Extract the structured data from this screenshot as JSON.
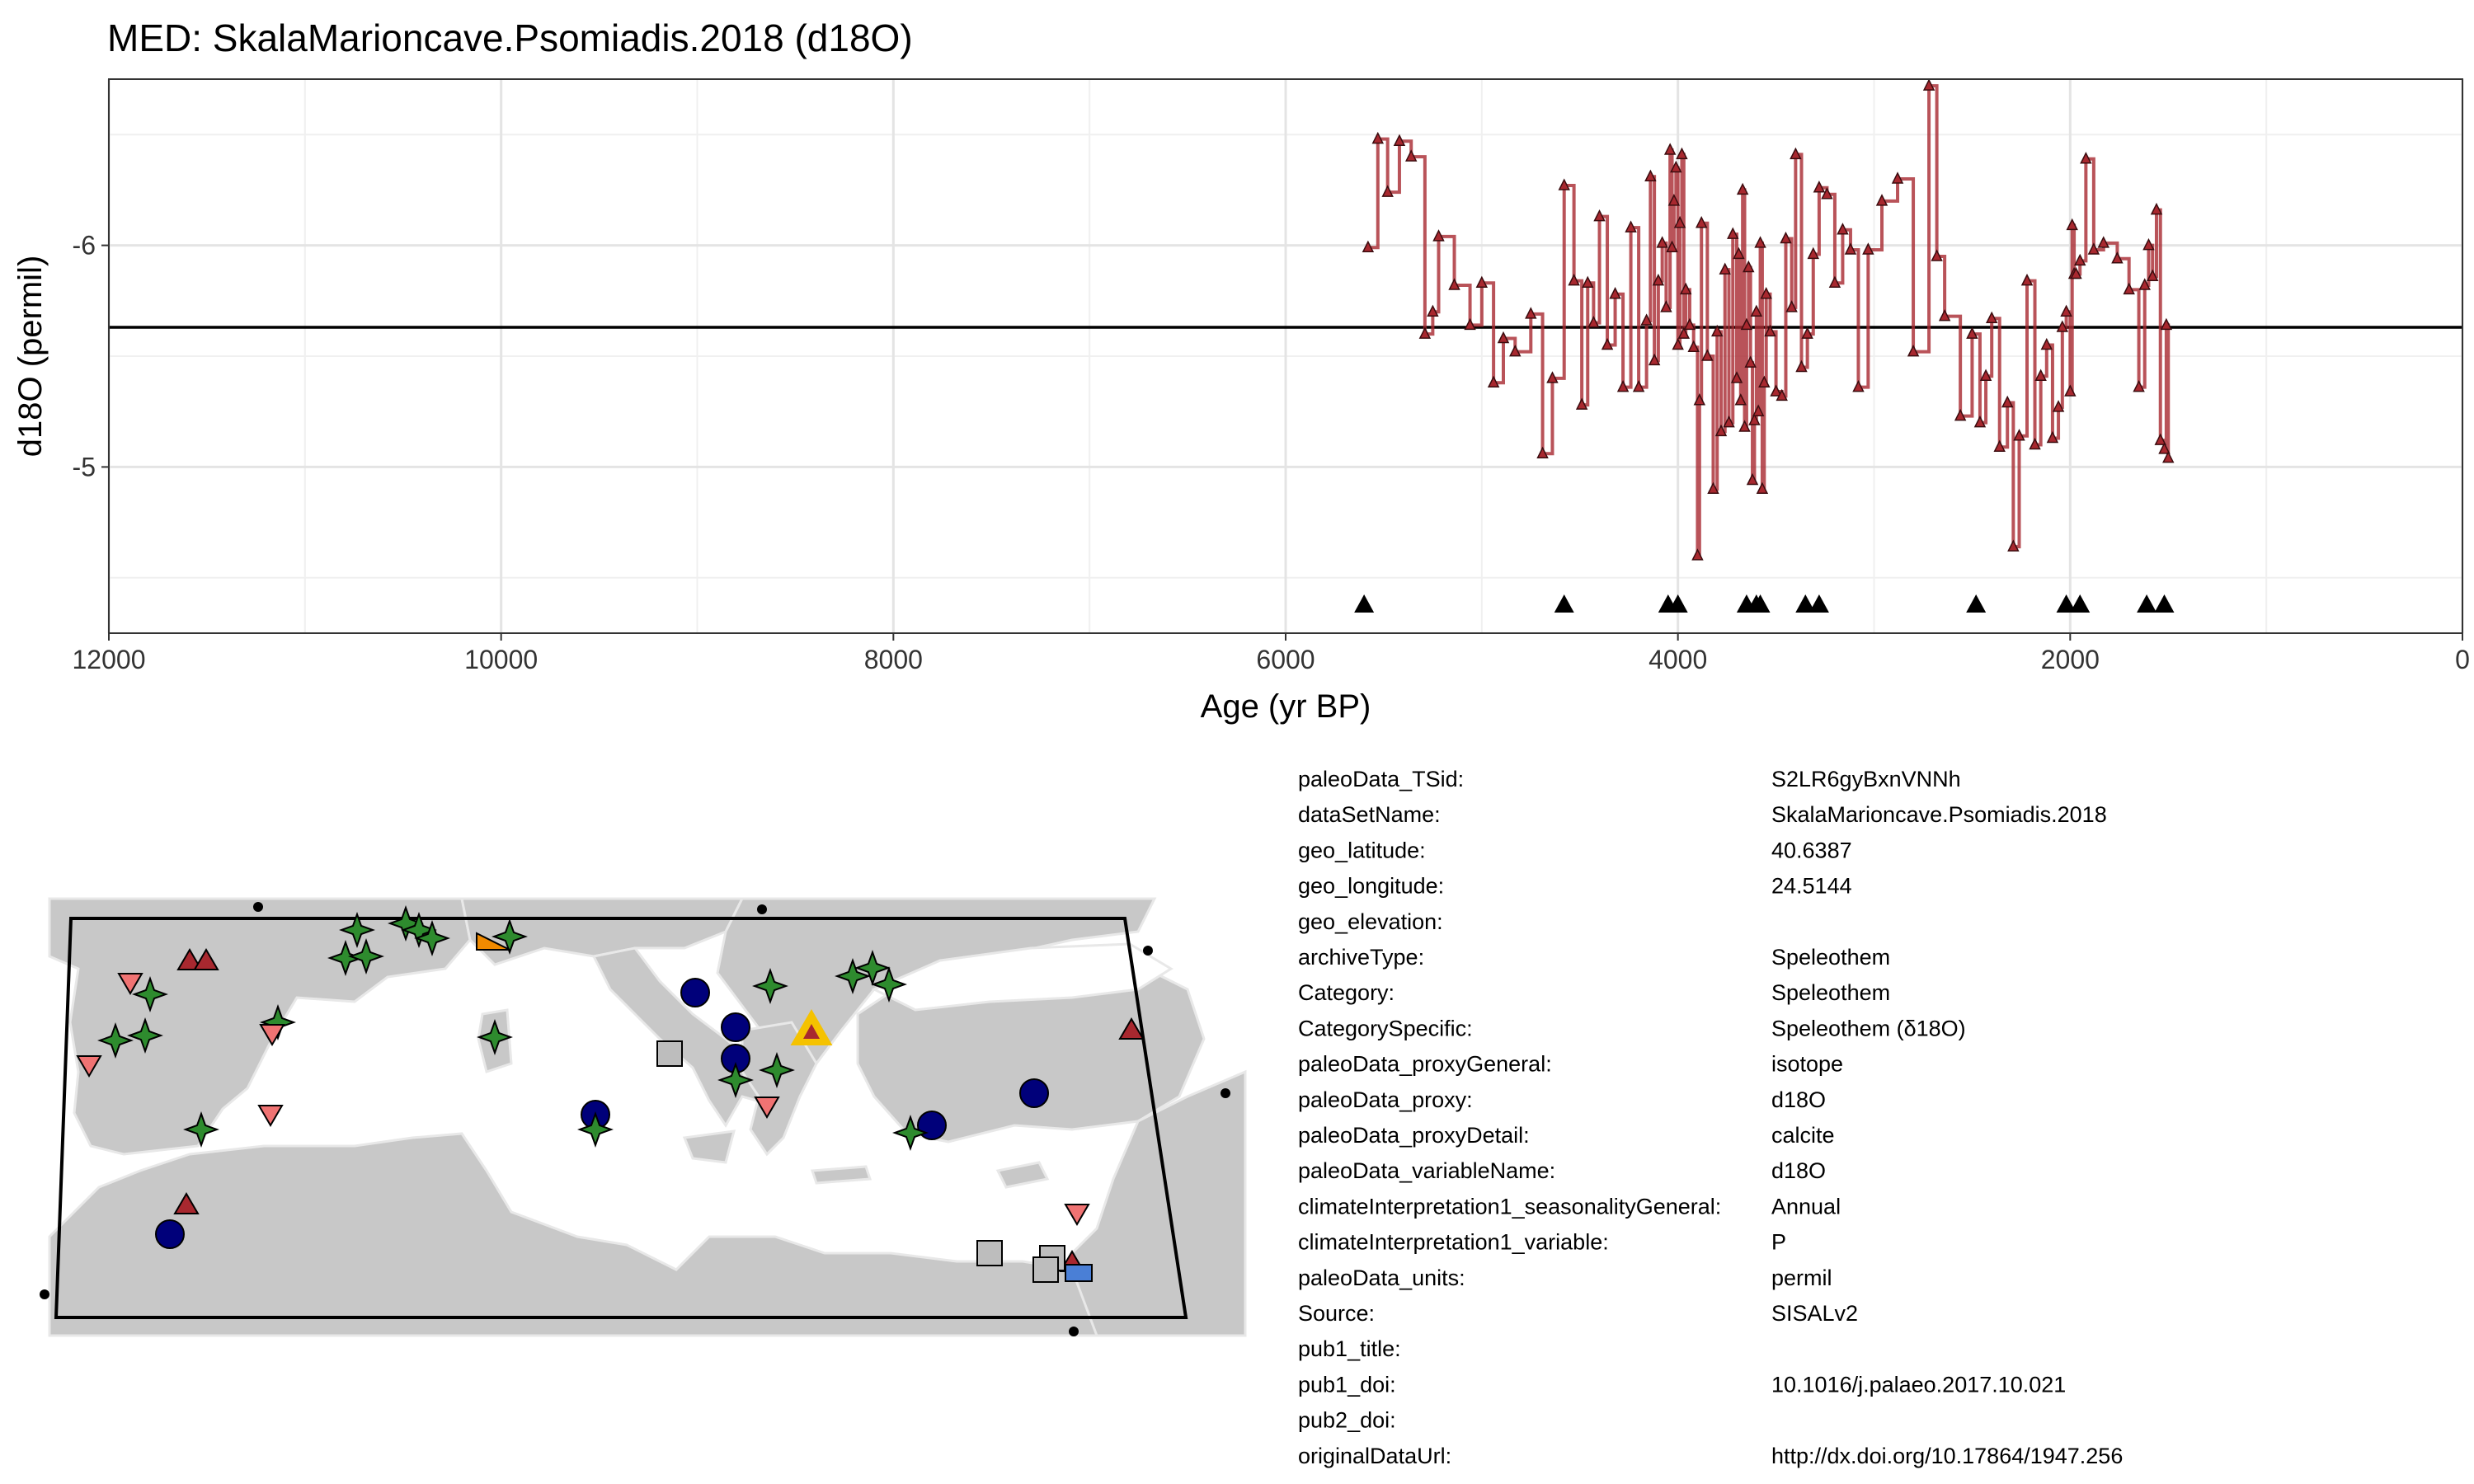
{
  "chart_data": {
    "type": "line",
    "title": "MED: SkalaMarioncave.Psomiadis.2018 (d18O)",
    "xlabel": "Age (yr BP)",
    "ylabel": "d18O (permil)",
    "xlim": [
      12000,
      0
    ],
    "ylim": [
      -4.25,
      -6.75
    ],
    "x_reversed": true,
    "y_reversed": true,
    "x_ticks": [
      12000,
      10000,
      8000,
      6000,
      4000,
      2000,
      0
    ],
    "x_tick_labels": [
      "12000",
      "10000",
      "8000",
      "6000",
      "4000",
      "2000",
      "0"
    ],
    "y_ticks": [
      -6,
      -5
    ],
    "y_tick_labels": [
      "-6",
      "-5"
    ],
    "grid": true,
    "reference_line_y": -5.63,
    "series_color": "#a8282f",
    "series": [
      {
        "x": [
          5580,
          5530,
          5480,
          5420,
          5360,
          5290,
          5250,
          5220,
          5140,
          5060,
          5000,
          4940,
          4890,
          4830,
          4750,
          4690,
          4640,
          4580,
          4530,
          4490,
          4460,
          4430,
          4400,
          4360,
          4320,
          4280,
          4240,
          4200,
          4160,
          4140,
          4120,
          4100,
          4080,
          4060,
          4040,
          4030,
          4020,
          4010,
          4000,
          3990,
          3980,
          3970,
          3960,
          3940,
          3920,
          3900,
          3890,
          3880,
          3850,
          3820,
          3800,
          3780,
          3760,
          3740,
          3720,
          3700,
          3690,
          3680,
          3670,
          3660,
          3650,
          3640,
          3630,
          3620,
          3610,
          3600,
          3590,
          3580,
          3570,
          3560,
          3550,
          3530,
          3500,
          3470,
          3450,
          3420,
          3400,
          3370,
          3340,
          3310,
          3280,
          3240,
          3200,
          3160,
          3120,
          3080,
          3030,
          2960,
          2880,
          2800,
          2720,
          2680,
          2640,
          2560,
          2500,
          2460,
          2430,
          2400,
          2360,
          2320,
          2290,
          2260,
          2220,
          2180,
          2150,
          2120,
          2090,
          2060,
          2040,
          2020,
          2000,
          1990,
          1980,
          1970,
          1950,
          1920,
          1880,
          1830,
          1760,
          1700,
          1650,
          1620,
          1600,
          1580,
          1560,
          1540,
          1520,
          1510,
          1500
        ],
        "y": [
          -5.99,
          -6.48,
          -6.24,
          -6.47,
          -6.4,
          -5.6,
          -5.7,
          -6.04,
          -5.82,
          -5.64,
          -5.83,
          -5.38,
          -5.58,
          -5.52,
          -5.69,
          -5.06,
          -5.4,
          -6.27,
          -5.84,
          -5.28,
          -5.83,
          -5.65,
          -6.13,
          -5.55,
          -5.78,
          -5.36,
          -6.08,
          -5.36,
          -5.66,
          -6.31,
          -5.48,
          -5.84,
          -6.01,
          -5.72,
          -6.43,
          -5.99,
          -6.2,
          -6.35,
          -5.55,
          -6.1,
          -6.41,
          -5.6,
          -5.8,
          -5.64,
          -5.54,
          -4.6,
          -5.3,
          -6.1,
          -5.5,
          -4.9,
          -5.61,
          -5.16,
          -5.89,
          -5.2,
          -6.05,
          -5.4,
          -5.96,
          -5.3,
          -6.25,
          -5.18,
          -5.64,
          -5.9,
          -5.47,
          -4.94,
          -5.21,
          -5.7,
          -5.25,
          -6.01,
          -4.9,
          -5.38,
          -5.78,
          -5.61,
          -5.34,
          -5.32,
          -6.03,
          -5.72,
          -6.41,
          -5.45,
          -5.6,
          -5.96,
          -6.26,
          -6.23,
          -5.83,
          -6.07,
          -5.98,
          -5.36,
          -5.98,
          -6.2,
          -6.3,
          -5.52,
          -6.72,
          -5.95,
          -5.68,
          -5.23,
          -5.6,
          -5.2,
          -5.41,
          -5.67,
          -5.09,
          -5.29,
          -4.64,
          -5.14,
          -5.84,
          -5.1,
          -5.41,
          -5.55,
          -5.13,
          -5.27,
          -5.63,
          -5.7,
          -5.34,
          -6.09,
          -5.87,
          -5.87,
          -5.93,
          -6.39,
          -5.98,
          -6.01,
          -5.94,
          -5.8,
          -5.36,
          -5.82,
          -6.0,
          -5.86,
          -6.16,
          -5.12,
          -5.08,
          -5.64,
          -5.04
        ]
      }
    ],
    "chron_markers_x": [
      5600,
      4580,
      4050,
      4000,
      3650,
      3600,
      3580,
      3350,
      3280,
      2480,
      2020,
      1950,
      1610,
      1520
    ],
    "chron_marker_y": -4.38
  },
  "map": {
    "site_marker": {
      "color": "#f5c200",
      "inner_color": "#a8282f"
    },
    "land_color": "#c8c8c8",
    "border_color": "#e6e6e6",
    "frame_color": "#000000"
  },
  "metadata": {
    "rows": [
      {
        "key": "paleoData_TSid:",
        "value": "S2LR6gyBxnVNNh"
      },
      {
        "key": "dataSetName:",
        "value": "SkalaMarioncave.Psomiadis.2018"
      },
      {
        "key": "geo_latitude:",
        "value": "40.6387"
      },
      {
        "key": "geo_longitude:",
        "value": "24.5144"
      },
      {
        "key": "geo_elevation:",
        "value": ""
      },
      {
        "key": "archiveType:",
        "value": "Speleothem"
      },
      {
        "key": "Category:",
        "value": "Speleothem"
      },
      {
        "key": "CategorySpecific:",
        "value": "Speleothem (δ18O)"
      },
      {
        "key": "paleoData_proxyGeneral:",
        "value": "isotope"
      },
      {
        "key": "paleoData_proxy:",
        "value": "d18O"
      },
      {
        "key": "paleoData_proxyDetail:",
        "value": "calcite"
      },
      {
        "key": "paleoData_variableName:",
        "value": "d18O"
      },
      {
        "key": "climateInterpretation1_seasonalityGeneral:",
        "value": "Annual"
      },
      {
        "key": "climateInterpretation1_variable:",
        "value": "P"
      },
      {
        "key": "paleoData_units:",
        "value": "permil"
      },
      {
        "key": "Source:",
        "value": "SISALv2"
      },
      {
        "key": "pub1_title:",
        "value": ""
      },
      {
        "key": "pub1_doi:",
        "value": "10.1016/j.palaeo.2017.10.021"
      },
      {
        "key": "pub2_doi:",
        "value": ""
      },
      {
        "key": "originalDataUrl:",
        "value": "http://dx.doi.org/10.17864/1947.256"
      }
    ]
  }
}
